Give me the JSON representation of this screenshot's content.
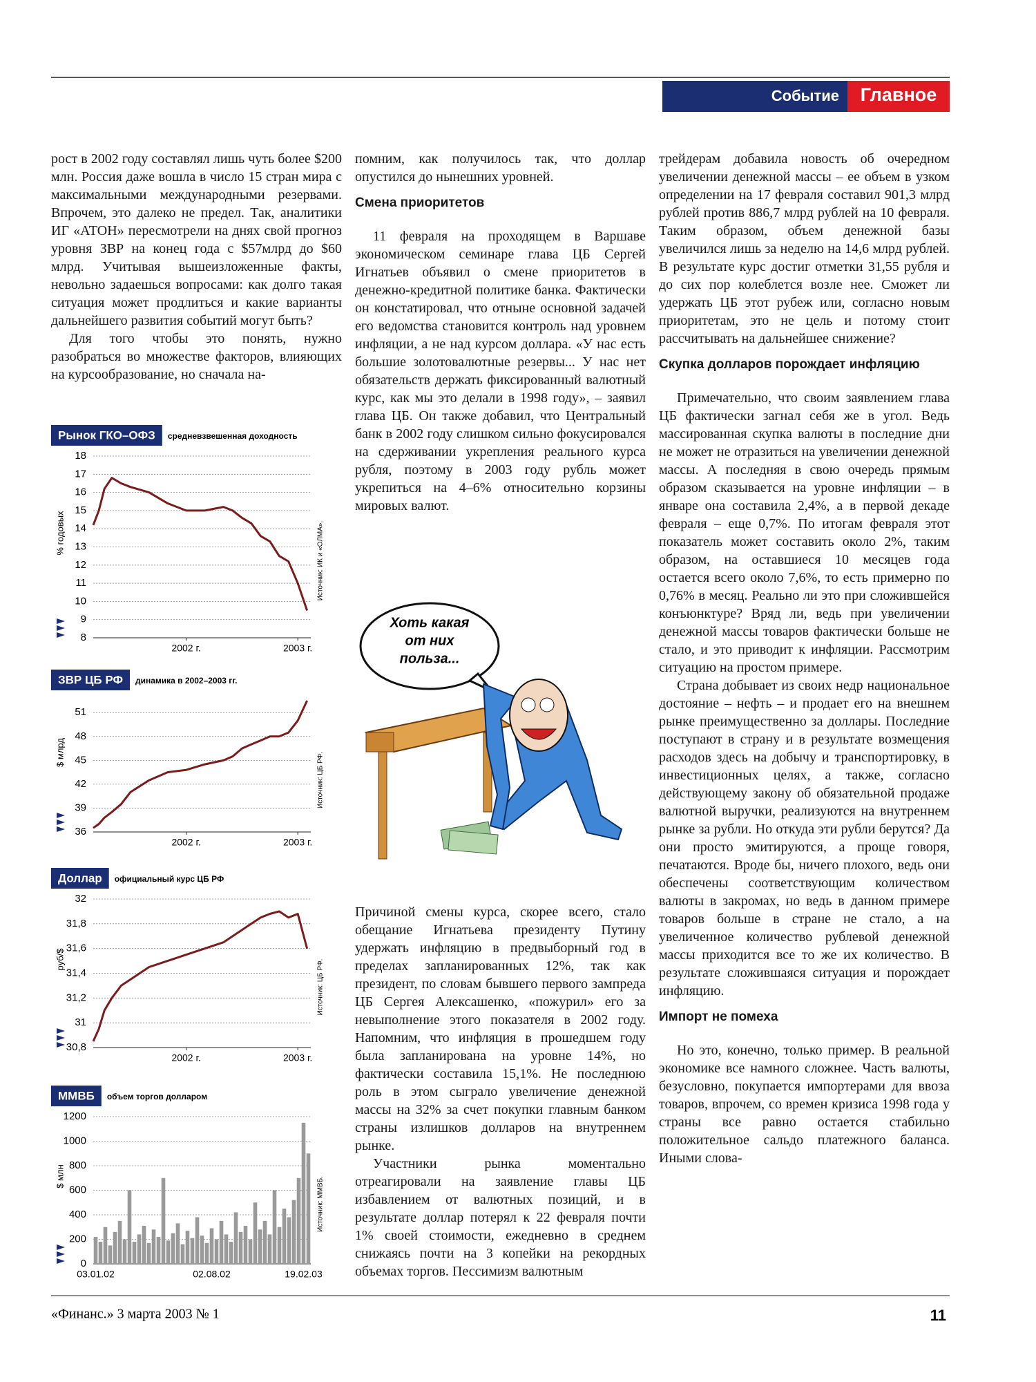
{
  "header": {
    "section": "Событие",
    "rubric": "Главное"
  },
  "column_1": [
    {
      "text": "рост в 2002 году составлял лишь чуть более $200 млн. Россия даже вошла в число 15 стран мира с максимальными международными резервами. Впрочем, это далеко не предел. Так, аналитики ИГ «АТОН» пересмотрели на днях свой прогноз уровня ЗВР на конец года с $57млрд до $60 млрд. Учитывая вышеизложенные факты, невольно задаешься вопросами: как долго такая ситуация может продлиться и какие варианты дальнейшего развития событий могут быть?"
    },
    {
      "text": "Для того чтобы это понять, нужно разобраться во множестве факторов, влияющих на курсообразование, но сначала на-"
    }
  ],
  "column_2_top": [
    {
      "text": "помним, как получилось так, что доллар опустился до нынешних уровней."
    },
    {
      "heading": "Смена приоритетов"
    },
    {
      "text": "11 февраля на проходящем в Варшаве экономическом семинаре глава ЦБ Сергей Игнатьев объявил о смене приоритетов в денежно-кредитной политике банка. Фактически он констатировал, что отныне основной задачей его ведомства становится контроль над уровнем инфляции, а не над курсом доллара. «У нас есть большие золотовалютные резервы... У нас нет обязательств держать фиксированный валютный курс, как мы это делали в 1998 году», – заявил глава ЦБ. Он также добавил, что Центральный банк в 2002 году слишком сильно фокусировался на сдерживании укрепления реального курса рубля, поэтому в 2003 году рубль может укрепиться на 4–6% относительно корзины мировых валют."
    }
  ],
  "cartoon": {
    "speech": [
      "Хоть какая",
      "от них",
      "польза..."
    ]
  },
  "column_2_bottom": [
    {
      "text": "Причиной смены курса, скорее всего, стало обещание Игнатьева президенту Путину удержать инфляцию в предвыборный год в пределах запланированных 12%, так как президент, по словам бывшего первого зампреда ЦБ Сергея Алексашенко, «пожурил» его за невыполнение этого показателя в 2002 году. Напомним, что инфляция в прошедшем году была запланирована на уровне 14%, но фактически составила 15,1%. Не последнюю роль в этом сыграло увеличение денежной массы на 32% за счет покупки главным банком страны излишков долларов на внутреннем рынке."
    },
    {
      "text": "Участники рынка моментально отреагировали на заявление главы ЦБ избавлением от валютных позиций, и в результате доллар потерял к 22 февраля почти 1% своей стоимости, ежедневно в среднем снижаясь почти на 3 копейки на рекордных объемах торгов. Пессимизм валютным"
    }
  ],
  "column_3": [
    {
      "text": "трейдерам добавила новость об очередном увеличении денежной массы – ее объем в узком определении на 17 февраля составил 901,3 млрд рублей против 886,7 млрд рублей на 10 февраля. Таким образом, объем денежной базы увеличился лишь за неделю на 14,6 млрд рублей. В результате курс достиг отметки 31,55 рубля и до сих пор колеблется возле нее. Сможет ли удержать ЦБ этот рубеж или, согласно новым приоритетам, это не цель и потому стоит рассчитывать на дальнейшее снижение?"
    },
    {
      "heading": "Скупка долларов порождает инфляцию"
    },
    {
      "text": "Примечательно, что своим заявлением глава ЦБ фактически загнал себя же в угол. Ведь массированная скупка валюты в последние дни не может не отразиться на увеличении денежной массы. А последняя в свою очередь прямым образом сказывается на уровне инфляции – в январе она составила 2,4%, а в первой декаде февраля – еще 0,7%. По итогам февраля этот показатель может составить около 2%, таким образом, на оставшиеся 10 месяцев года остается всего около 7,6%, то есть примерно по 0,76% в месяц. Реально ли это при сложившейся конъюнктуре? Вряд ли, ведь при увеличении денежной массы товаров фактически больше не стало, и это приводит к инфляции. Рассмотрим ситуацию на простом примере."
    },
    {
      "text": "Страна добывает из своих недр национальное достояние – нефть – и продает его на внешнем рынке преимущественно за доллары. Последние поступают в страну и в результате возмещения расходов здесь на добычу и транспортировку, в инвестиционных целях, а также, согласно действующему закону об обязательной продаже валютной выручки, реализуются на внутреннем рынке за рубли. Но откуда эти рубли берутся? Да они просто эмитируются, а проще говоря, печатаются. Вроде бы, ничего плохого, ведь они обеспечены соответствующим количеством валюты в закромах, но ведь в данном примере товаров больше в стране не стало, а на увеличенное количество рублевой денежной массы приходится все то же их количество. В результате сложившаяся ситуация и порождает инфляцию."
    },
    {
      "heading": "Импорт не помеха"
    },
    {
      "text": "Но это, конечно, только пример. В реальной экономике все намного сложнее. Часть валюты, безусловно, покупается импортерами для ввоза товаров, впрочем, со времен кризиса 1998 года у страны все равно остается стабильно положительное сальдо платежного баланса. Иными слова-"
    }
  ],
  "footer": {
    "issue": "«Финанс.» 3 марта 2003 № 1",
    "page": "11"
  },
  "chart_data": [
    {
      "type": "line",
      "title": "Рынок ГКО–ОФЗ",
      "subtitle": "средневзвешенная доходность",
      "ylabel": "% годовых",
      "source": "Источник: ИК и «ОЛМА».",
      "color": "#7a1c1c",
      "grid": true,
      "x": [
        2002.0,
        2002.03,
        2002.06,
        2002.1,
        2002.15,
        2002.2,
        2002.3,
        2002.4,
        2002.5,
        2002.6,
        2002.7,
        2002.75,
        2002.8,
        2002.85,
        2002.9,
        2002.95,
        2003.0,
        2003.05,
        2003.1,
        2003.15
      ],
      "values": [
        14.2,
        15,
        16.2,
        16.8,
        16.5,
        16.3,
        16,
        15.4,
        15,
        15,
        15.2,
        15,
        14.6,
        14.3,
        13.6,
        13.3,
        12.5,
        12.2,
        11,
        9.5
      ],
      "xlim": [
        2002.0,
        2003.17
      ],
      "xticks": [
        {
          "value": 2002.5,
          "label": "2002 г."
        },
        {
          "value": 2003.1,
          "label": "2003 г."
        }
      ],
      "ylim": [
        8,
        18
      ],
      "yticks": [
        8,
        9,
        10,
        11,
        12,
        13,
        14,
        15,
        16,
        17,
        18
      ]
    },
    {
      "type": "line",
      "title": "ЗВР ЦБ РФ",
      "subtitle": "динамика в 2002–2003 гг.",
      "ylabel": "$ млрд",
      "source": "Источник: ЦБ РФ.",
      "color": "#7a1c1c",
      "grid": true,
      "x": [
        2002.0,
        2002.03,
        2002.06,
        2002.1,
        2002.15,
        2002.2,
        2002.3,
        2002.4,
        2002.5,
        2002.6,
        2002.7,
        2002.75,
        2002.8,
        2002.85,
        2002.9,
        2002.95,
        2003.0,
        2003.05,
        2003.1,
        2003.15
      ],
      "values": [
        36.5,
        37,
        37.8,
        38.5,
        39.5,
        41,
        42.5,
        43.5,
        43.8,
        44.5,
        45,
        45.5,
        46.5,
        47,
        47.5,
        48,
        48,
        48.5,
        50,
        52.5
      ],
      "xlim": [
        2002.0,
        2003.17
      ],
      "xticks": [
        {
          "value": 2002.5,
          "label": "2002 г."
        },
        {
          "value": 2003.1,
          "label": "2003 г."
        }
      ],
      "ylim": [
        36,
        52.5
      ],
      "yticks": [
        36,
        39,
        42,
        45,
        48,
        51
      ]
    },
    {
      "type": "line",
      "title": "Доллар",
      "subtitle": "официальный курс ЦБ РФ",
      "ylabel": "руб/$",
      "source": "Источник: ЦБ РФ.",
      "color": "#7a1c1c",
      "grid": true,
      "x": [
        2002.0,
        2002.03,
        2002.06,
        2002.1,
        2002.15,
        2002.2,
        2002.3,
        2002.4,
        2002.5,
        2002.6,
        2002.7,
        2002.75,
        2002.8,
        2002.85,
        2002.9,
        2002.95,
        2003.0,
        2003.05,
        2003.1,
        2003.15
      ],
      "values": [
        30.85,
        30.95,
        31.1,
        31.2,
        31.3,
        31.35,
        31.45,
        31.5,
        31.55,
        31.6,
        31.65,
        31.7,
        31.75,
        31.8,
        31.85,
        31.88,
        31.9,
        31.85,
        31.88,
        31.6
      ],
      "xlim": [
        2002.0,
        2003.17
      ],
      "xticks": [
        {
          "value": 2002.5,
          "label": "2002 г."
        },
        {
          "value": 2003.1,
          "label": "2003 г."
        }
      ],
      "ylim": [
        30.8,
        32
      ],
      "yticks": [
        {
          "value": 30.8,
          "label": "30,8"
        },
        31,
        {
          "value": 31.2,
          "label": "31,2"
        },
        {
          "value": 31.4,
          "label": "31,4"
        },
        {
          "value": 31.6,
          "label": "31,6"
        },
        {
          "value": 31.8,
          "label": "31,8"
        },
        32
      ]
    },
    {
      "type": "bar",
      "title": "ММВБ",
      "subtitle": "объем торгов долларом",
      "ylabel": "$ млн",
      "source": "Источник: ММВБ.",
      "color": "#9a9a9a",
      "grid": true,
      "categories": [
        "03.01.02",
        null,
        null,
        null,
        null,
        null,
        null,
        null,
        null,
        null,
        null,
        null,
        null,
        null,
        null,
        null,
        null,
        null,
        null,
        null,
        null,
        null,
        null,
        null,
        "02.08.02",
        null,
        null,
        null,
        null,
        null,
        null,
        null,
        null,
        null,
        null,
        null,
        null,
        null,
        null,
        null,
        null,
        null,
        null,
        "19.02.03",
        null
      ],
      "values": [
        220,
        180,
        300,
        150,
        260,
        350,
        200,
        600,
        180,
        240,
        310,
        170,
        280,
        220,
        700,
        190,
        250,
        330,
        160,
        270,
        210,
        380,
        230,
        170,
        290,
        200,
        350,
        240,
        180,
        420,
        260,
        310,
        200,
        500,
        280,
        350,
        240,
        600,
        300,
        450,
        380,
        520,
        700,
        1150,
        900
      ],
      "ylim": [
        0,
        1200
      ],
      "yticks": [
        0,
        200,
        400,
        600,
        800,
        1000,
        1200
      ]
    }
  ]
}
